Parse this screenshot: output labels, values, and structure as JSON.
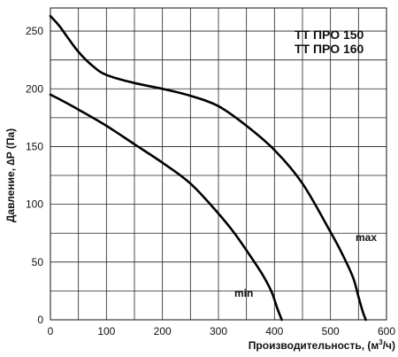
{
  "chart_data": {
    "type": "line",
    "title_lines": [
      "ТТ ПРО 150",
      "ТТ ПРО 160"
    ],
    "xlabel_main": "Производительность, (м",
    "xlabel_sup": "3",
    "xlabel_tail": "/ч)",
    "ylabel": "Давление, ∆P (Па)",
    "xlim": [
      0,
      600
    ],
    "ylim": [
      0,
      270
    ],
    "xticks": [
      0,
      100,
      200,
      300,
      400,
      500,
      600
    ],
    "yticks": [
      0,
      50,
      100,
      150,
      200,
      250
    ],
    "x_tick_labels": [
      "0",
      "100",
      "200",
      "300",
      "400",
      "500",
      "600"
    ],
    "y_tick_labels": [
      "0",
      "50",
      "100",
      "150",
      "200",
      "250"
    ],
    "grid_x": [
      0,
      50,
      100,
      150,
      200,
      250,
      300,
      350,
      400,
      450,
      500,
      550,
      600
    ],
    "grid_y": [
      0,
      25,
      50,
      75,
      100,
      125,
      150,
      175,
      200,
      225,
      250
    ],
    "grid": true,
    "series": [
      {
        "name": "max",
        "x": [
          0,
          15,
          30,
          50,
          75,
          100,
          150,
          200,
          250,
          300,
          350,
          400,
          450,
          500,
          520,
          540,
          550,
          557,
          563
        ],
        "y": [
          263,
          255,
          245,
          232,
          220,
          212,
          205,
          200,
          194,
          185,
          168,
          147,
          118,
          76,
          58,
          37,
          20,
          8,
          0
        ]
      },
      {
        "name": "min",
        "x": [
          0,
          20,
          50,
          100,
          150,
          200,
          250,
          300,
          330,
          360,
          380,
          395,
          405,
          413
        ],
        "y": [
          195,
          190,
          182,
          168,
          152,
          136,
          118,
          92,
          74,
          53,
          38,
          24,
          10,
          0
        ]
      }
    ]
  }
}
